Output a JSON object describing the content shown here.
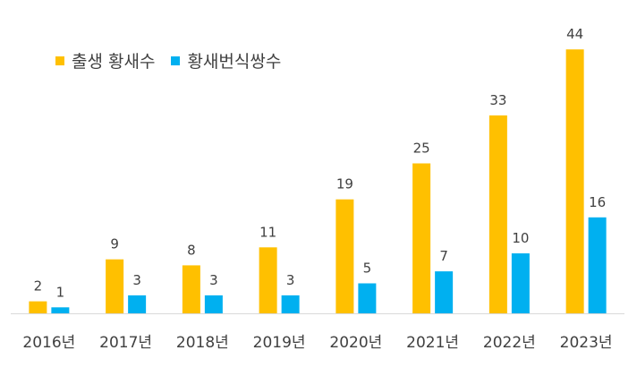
{
  "chart_data": {
    "type": "bar",
    "title": "",
    "xlabel": "",
    "ylabel": "",
    "categories": [
      "2016년",
      "2017년",
      "2018년",
      "2019년",
      "2020년",
      "2021년",
      "2022년",
      "2023년"
    ],
    "series": [
      {
        "name": "출생 황새수",
        "color": "#FFC000",
        "values": [
          2,
          9,
          8,
          11,
          19,
          25,
          33,
          44
        ]
      },
      {
        "name": "황새번식쌍수",
        "color": "#00B0F0",
        "values": [
          1,
          3,
          3,
          3,
          5,
          7,
          10,
          16
        ]
      }
    ],
    "ylim": [
      0,
      50
    ],
    "grid": false,
    "legend_position": "top-left",
    "data_labels": true
  }
}
